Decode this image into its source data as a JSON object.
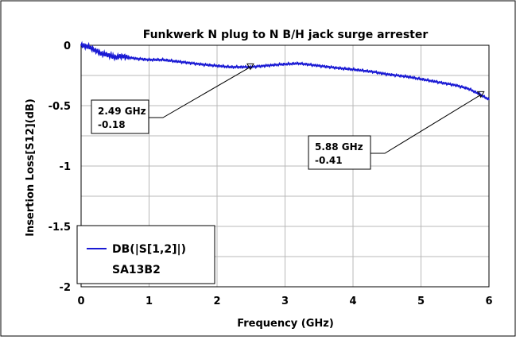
{
  "chart_data": {
    "type": "line",
    "title": "Funkwerk N plug to N B/H jack surge arrester",
    "xlabel": "Frequency (GHz)",
    "ylabel": "Insertion Loss[S12](dB)",
    "xlim": [
      0,
      6
    ],
    "ylim": [
      -2,
      0
    ],
    "x_ticks": [
      "0",
      "1",
      "2",
      "3",
      "4",
      "5",
      "6"
    ],
    "y_ticks": [
      "0",
      "-0.5",
      "-1",
      "-1.5",
      "-2"
    ],
    "grid": true,
    "legend_position": "bottom-left",
    "series": [
      {
        "name": "DB(|S[1,2]|)",
        "subname": "SA13B2",
        "color": "#1a1ad4",
        "x": [
          0.0,
          0.1,
          0.2,
          0.3,
          0.4,
          0.5,
          0.6,
          0.8,
          1.0,
          1.2,
          1.5,
          1.8,
          2.0,
          2.2,
          2.49,
          2.7,
          2.9,
          3.2,
          3.5,
          3.8,
          4.0,
          4.3,
          4.5,
          4.8,
          5.0,
          5.2,
          5.5,
          5.7,
          5.88,
          6.0
        ],
        "y": [
          0.0,
          -0.01,
          -0.04,
          -0.07,
          -0.08,
          -0.1,
          -0.09,
          -0.11,
          -0.12,
          -0.12,
          -0.14,
          -0.16,
          -0.17,
          -0.18,
          -0.18,
          -0.17,
          -0.16,
          -0.15,
          -0.17,
          -0.19,
          -0.2,
          -0.22,
          -0.24,
          -0.26,
          -0.28,
          -0.3,
          -0.33,
          -0.36,
          -0.41,
          -0.45
        ]
      }
    ],
    "markers": [
      {
        "label_freq": "2.49 GHz",
        "label_value": "-0.18",
        "x": 2.49,
        "y": -0.18
      },
      {
        "label_freq": "5.88 GHz",
        "label_value": "-0.41",
        "x": 5.88,
        "y": -0.41
      }
    ]
  }
}
